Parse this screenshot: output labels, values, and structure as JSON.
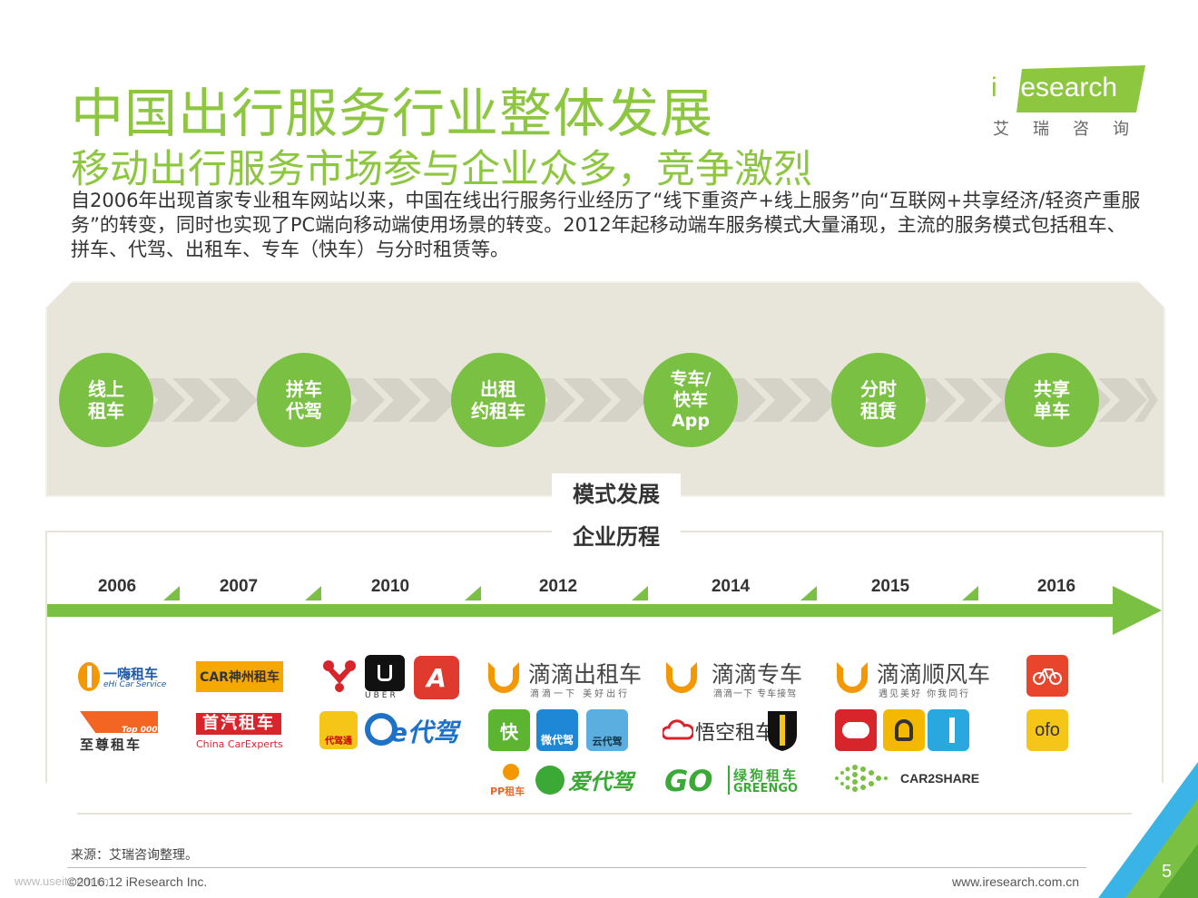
{
  "title": "中国出行服务行业整体发展",
  "subtitle": "移动出行服务市场参与企业众多，竞争激烈",
  "intro": "自2006年出现首家专业租车网站以来，中国在线出行服务行业经历了“线下重资产+线上服务”向“互联网+共享经济/轻资产重服务”的转变，同时也实现了PC端向移动端使用场景的转变。2012年起移动端车服务模式大量涌现，主流的服务模式包括租车、拼车、代驾、出租车、专车（快车）与分时租赁等。",
  "logo": {
    "text": "iResearch",
    "sub": "艾瑞咨询",
    "accent": "#8dc63f"
  },
  "modes": [
    "线上\n租车",
    "拼车\n代驾",
    "出租\n约租车",
    "专车/\n快车\nApp",
    "分时\n租赁",
    "共享\n单车"
  ],
  "labels": {
    "mode": "模式发展",
    "history": "企业历程"
  },
  "years": [
    "2006",
    "2007",
    "2010",
    "2012",
    "2014",
    "2015",
    "2016"
  ],
  "brands": {
    "ehi": {
      "name": "一嗨租车",
      "sub": "eHi Car Service"
    },
    "zhizun": {
      "badge": "Top 000",
      "name": "至尊租车"
    },
    "shenzhou": {
      "name": "CAR神州租车"
    },
    "shouqi": {
      "name": "首汽租车",
      "sub": "China CarExperts"
    },
    "uber": {
      "label": "UBER"
    },
    "daijia": {
      "label": "代驾通"
    },
    "edaijia": {
      "name": "e代驾"
    },
    "didi_taxi": {
      "name": "滴滴出租车",
      "slogan": "滴滴一下 美好出行"
    },
    "kuai": {
      "label": "快"
    },
    "weidaijia": {
      "label": "微代驾"
    },
    "yundaijia": {
      "label": "云代驾"
    },
    "pp": {
      "name": "PP租车"
    },
    "aidaijia": {
      "name": "爱代驾"
    },
    "didi_special": {
      "name": "滴滴专车",
      "slogan": "滴滴一下 专车接驾"
    },
    "wukong": {
      "name": "悟空租车"
    },
    "greengo": {
      "name": "绿狗租车",
      "sub": "GREENGO"
    },
    "didi_hitch": {
      "name": "滴滴顺风车",
      "slogan": "遇见美好 你我同行"
    },
    "car2share": {
      "name": "CAR2SHARE"
    },
    "ofo": {
      "label": "ofo"
    }
  },
  "source": "来源：艾瑞咨询整理。",
  "copyright": "©2016.12 iResearch Inc.",
  "watermark": "www.useit.com.cn",
  "website": "www.iresearch.com.cn",
  "page_number": "5",
  "colors": {
    "green": "#7ac143",
    "title_green": "#8dc63f",
    "panel": "#e8e6da",
    "orange": "#f39800",
    "chevron": "#d5d3c8"
  }
}
